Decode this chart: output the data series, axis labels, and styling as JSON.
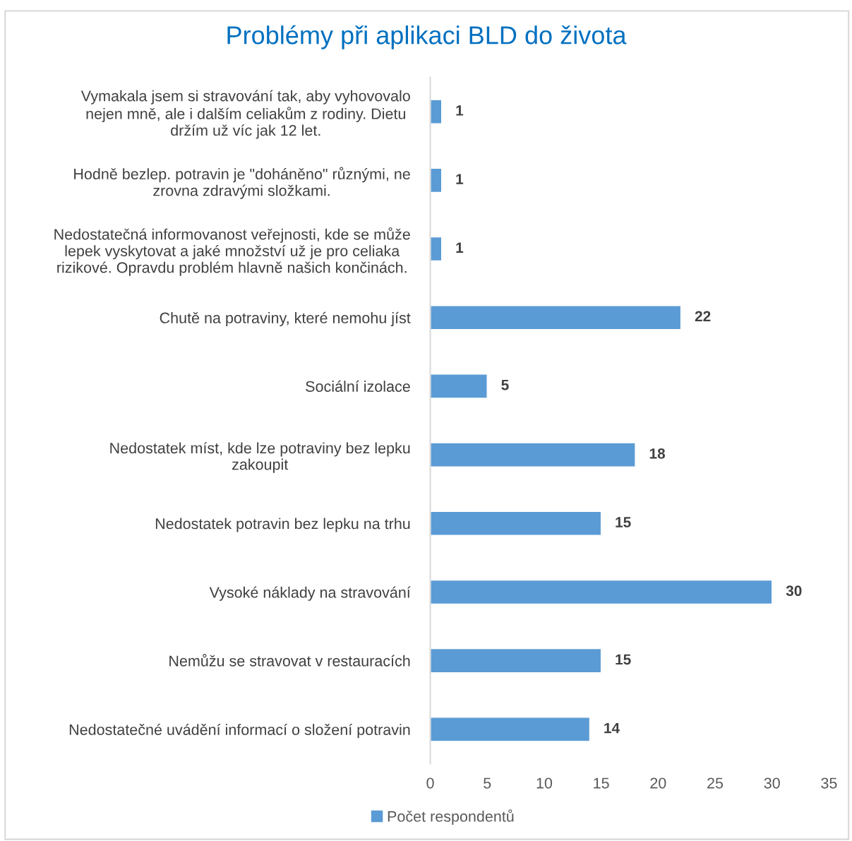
{
  "chart_data": {
    "type": "bar",
    "orientation": "horizontal",
    "title": "Problémy při aplikaci BLD do života",
    "categories": [
      "Vymakala jsem si stravování tak, aby vyhovovalo\nnejen mně, ale i dalším celiakům z rodiny. Dietu\ndržím už víc jak 12 let.",
      "Hodně bezlep. potravin je \"doháněno\" různými, ne\nzrovna zdravými složkami.",
      "Nedostatečná informovanost veřejnosti, kde se může\nlepek vyskytovat a jaké množství už je pro celiaka\nrizikové. Opravdu problém hlavně našich končinách.",
      "Chutě na potraviny, které nemohu jíst",
      "Sociální izolace",
      "Nedostatek míst, kde lze potraviny bez lepku\nzakoupit",
      "Nedostatek potravin bez lepku na trhu",
      "Vysoké náklady na stravování",
      "Nemůžu se stravovat v restauracích",
      "Nedostatečné uvádění informací o složení potravin"
    ],
    "series": [
      {
        "name": "Počet respondentů",
        "color": "#5b9bd5",
        "values": [
          1,
          1,
          1,
          22,
          5,
          18,
          15,
          30,
          15,
          14
        ]
      }
    ],
    "xlim": [
      0,
      35
    ],
    "xticks": [
      0,
      5,
      10,
      15,
      20,
      25,
      30,
      35
    ],
    "data_labels": true,
    "legend": "bottom",
    "grid": false
  }
}
